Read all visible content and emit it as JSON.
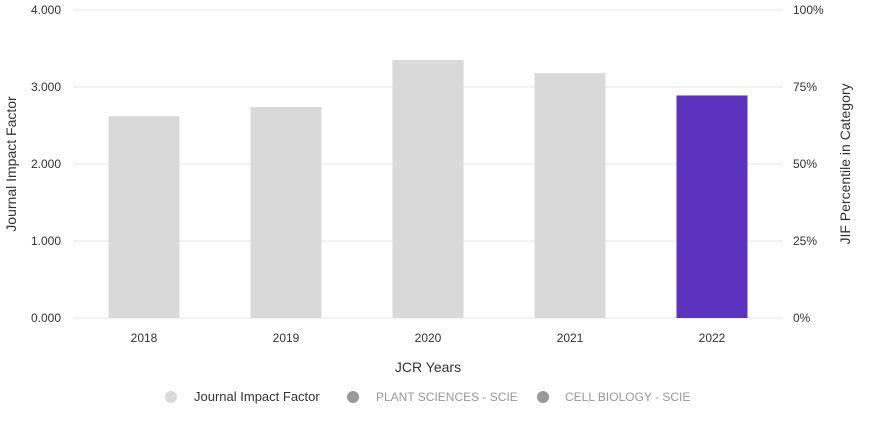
{
  "chart_data": {
    "type": "bar",
    "categories": [
      "2018",
      "2019",
      "2020",
      "2021",
      "2022"
    ],
    "values": [
      2.62,
      2.74,
      3.35,
      3.18,
      2.89
    ],
    "xlabel": "JCR Years",
    "ylabel": "Journal Impact Factor",
    "ylabel_right": "JIF Percentile in Category",
    "ylim": [
      0,
      4
    ],
    "y_ticks": [
      "0.000",
      "1.000",
      "2.000",
      "3.000",
      "4.000"
    ],
    "y2lim": [
      0,
      100
    ],
    "y2_ticks": [
      "0%",
      "25%",
      "50%",
      "75%",
      "100%"
    ],
    "grid": true,
    "highlight_index": 4,
    "colors": {
      "bar": "#d9d9d9",
      "highlight": "#5c33be",
      "grid": "#e6e6e6",
      "axis_text": "#333333",
      "legend_inactive": "#999999"
    },
    "legend": {
      "placement": "bottom",
      "items": [
        {
          "label": "Journal Impact Factor",
          "color": "#d9d9d9",
          "active": true
        },
        {
          "label": "PLANT SCIENCES - SCIE",
          "color": "#999999",
          "active": false
        },
        {
          "label": "CELL BIOLOGY - SCIE",
          "color": "#999999",
          "active": false
        }
      ]
    }
  }
}
